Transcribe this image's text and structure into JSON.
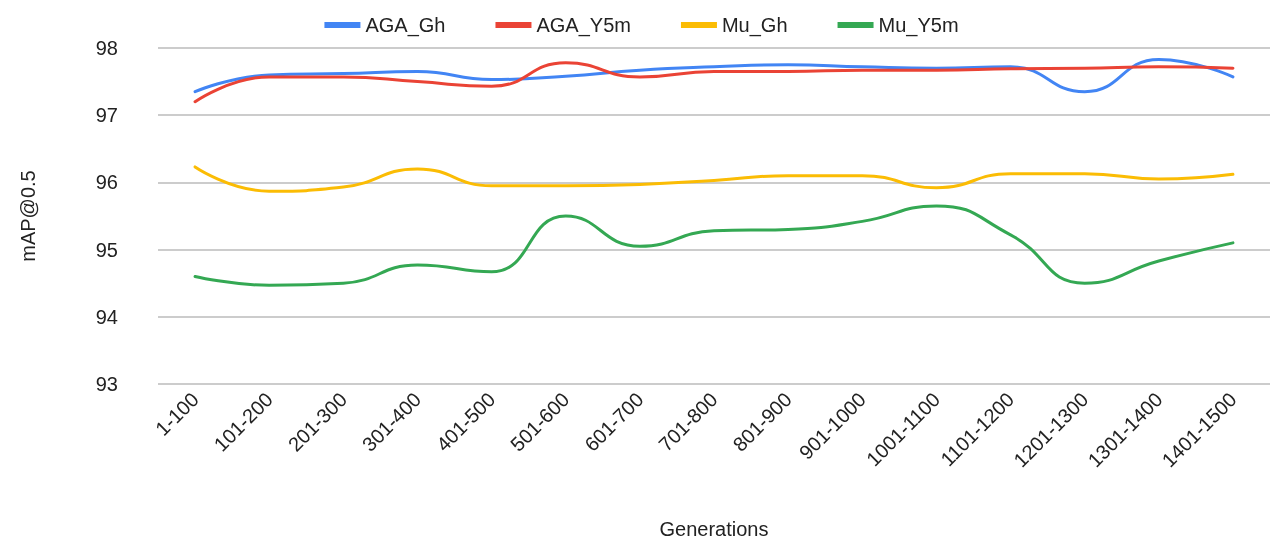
{
  "chart_data": {
    "type": "line",
    "xlabel": "Generations",
    "ylabel": "mAP@0.5",
    "categories": [
      "1-100",
      "101-200",
      "201-300",
      "301-400",
      "401-500",
      "501-600",
      "601-700",
      "701-800",
      "801-900",
      "901-1000",
      "1001-1100",
      "1101-1200",
      "1201-1300",
      "1301-1400",
      "1401-1500"
    ],
    "series": [
      {
        "name": "AGA_Gh",
        "color": "#4285f4",
        "values": [
          97.35,
          97.6,
          97.62,
          97.65,
          97.53,
          97.58,
          97.67,
          97.72,
          97.75,
          97.72,
          97.7,
          97.72,
          97.35,
          97.83,
          97.57
        ]
      },
      {
        "name": "AGA_Y5m",
        "color": "#ea4335",
        "values": [
          97.2,
          97.57,
          97.57,
          97.5,
          97.43,
          97.78,
          97.57,
          97.65,
          97.65,
          97.67,
          97.67,
          97.69,
          97.7,
          97.72,
          97.7
        ]
      },
      {
        "name": "Mu_Gh",
        "color": "#fbbc04",
        "values": [
          96.23,
          95.87,
          95.93,
          96.2,
          95.95,
          95.95,
          95.97,
          96.03,
          96.1,
          96.1,
          95.92,
          96.13,
          96.13,
          96.05,
          96.12
        ]
      },
      {
        "name": "Mu_Y5m",
        "color": "#34a853",
        "values": [
          94.6,
          94.47,
          94.5,
          94.77,
          94.67,
          95.5,
          95.05,
          95.28,
          95.3,
          95.42,
          95.65,
          95.22,
          94.5,
          94.83,
          95.1
        ]
      }
    ],
    "ylim": [
      93,
      98
    ],
    "yticks": [
      93,
      94,
      95,
      96,
      97,
      98
    ],
    "grid": "y",
    "legend": "top",
    "marker": "none",
    "line_style": "solid"
  }
}
